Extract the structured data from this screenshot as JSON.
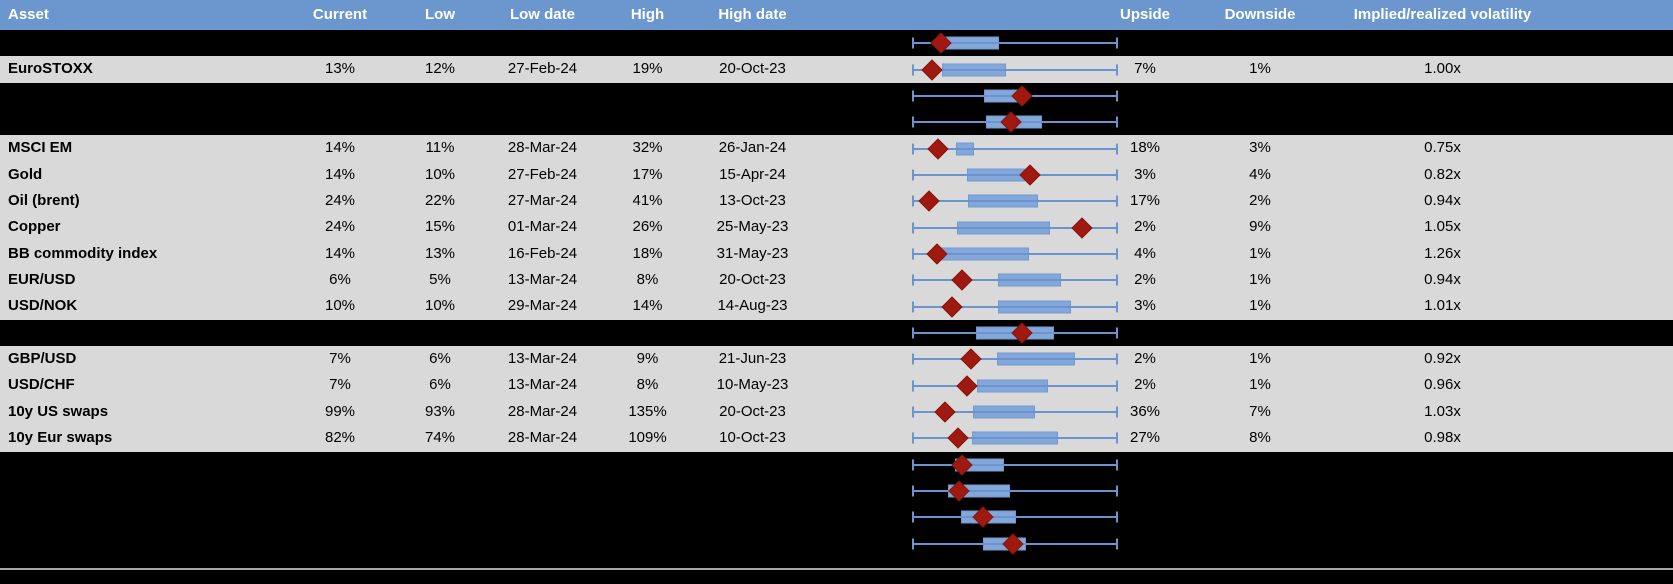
{
  "columns": {
    "asset": "Asset",
    "current": "Current",
    "low": "Low",
    "low_date": "Low date",
    "high": "High",
    "high_date": "High date",
    "upside": "Upside",
    "downside": "Downside",
    "vol": "Implied/realized volatility"
  },
  "colors": {
    "header_bg": "#6b96ce",
    "header_text": "#ffffff",
    "row_bg": "#d9d9d9",
    "hidden_row_bg": "#000000",
    "box_fill": "#84a7d9",
    "box_border": "#7299cf",
    "whisker": "#6a93cf",
    "diamond": "#9e1a10",
    "separator_line": "#a6a6a6"
  },
  "rows": [
    {
      "type": "hidden",
      "boxplot": {
        "box_left_pct": 14.6,
        "box_right_pct": 41.2,
        "diamond_pct": 13.7
      }
    },
    {
      "type": "data",
      "asset": "EuroSTOXX",
      "current": "13%",
      "low": "12%",
      "low_date": "27-Feb-24",
      "high": "19%",
      "high_date": "20-Oct-23",
      "upside": "7%",
      "downside": "1%",
      "vol": "1.00x",
      "boxplot": {
        "box_left_pct": 14.1,
        "box_right_pct": 44.6,
        "diamond_pct": 9.3
      }
    },
    {
      "type": "hidden",
      "boxplot": {
        "box_left_pct": 34.7,
        "box_right_pct": 53.9,
        "diamond_pct": 53.4
      }
    },
    {
      "type": "hidden",
      "boxplot": {
        "box_left_pct": 35.8,
        "box_right_pct": 62.3,
        "diamond_pct": 48.0
      }
    },
    {
      "type": "data",
      "asset": "MSCI EM",
      "current": "14%",
      "low": "11%",
      "low_date": "28-Mar-24",
      "high": "32%",
      "high_date": "26-Jan-24",
      "upside": "18%",
      "downside": "3%",
      "vol": "0.75x",
      "boxplot": {
        "box_left_pct": 20.9,
        "box_right_pct": 28.9,
        "diamond_pct": 12.3
      }
    },
    {
      "type": "data",
      "asset": "Gold",
      "current": "14%",
      "low": "10%",
      "low_date": "27-Feb-24",
      "high": "17%",
      "high_date": "15-Apr-24",
      "upside": "3%",
      "downside": "4%",
      "vol": "0.82x",
      "boxplot": {
        "box_left_pct": 26.3,
        "box_right_pct": 53.9,
        "diamond_pct": 57.4
      }
    },
    {
      "type": "data",
      "asset": "Oil (brent)",
      "current": "24%",
      "low": "22%",
      "low_date": "27-Mar-24",
      "high": "41%",
      "high_date": "13-Oct-23",
      "upside": "17%",
      "downside": "2%",
      "vol": "0.94x",
      "boxplot": {
        "box_left_pct": 26.8,
        "box_right_pct": 60.3,
        "diamond_pct": 8.0
      }
    },
    {
      "type": "data",
      "asset": "Copper",
      "current": "24%",
      "low": "15%",
      "low_date": "01-Mar-24",
      "high": "26%",
      "high_date": "25-May-23",
      "upside": "2%",
      "downside": "9%",
      "vol": "1.05x",
      "boxplot": {
        "box_left_pct": 21.7,
        "box_right_pct": 66.0,
        "diamond_pct": 82.7
      }
    },
    {
      "type": "data",
      "asset": "BB commodity index",
      "current": "14%",
      "low": "13%",
      "low_date": "16-Feb-24",
      "high": "18%",
      "high_date": "31-May-23",
      "upside": "4%",
      "downside": "1%",
      "vol": "1.26x",
      "boxplot": {
        "box_left_pct": 12.4,
        "box_right_pct": 55.9,
        "diamond_pct": 11.6
      }
    },
    {
      "type": "data",
      "asset": "EUR/USD",
      "current": "6%",
      "low": "5%",
      "low_date": "13-Mar-24",
      "high": "8%",
      "high_date": "20-Oct-23",
      "upside": "2%",
      "downside": "1%",
      "vol": "0.94x",
      "boxplot": {
        "box_left_pct": 41.8,
        "box_right_pct": 71.7,
        "diamond_pct": 23.9
      }
    },
    {
      "type": "data",
      "asset": "USD/NOK",
      "current": "10%",
      "low": "10%",
      "low_date": "29-Mar-24",
      "high": "14%",
      "high_date": "14-Aug-23",
      "upside": "3%",
      "downside": "1%",
      "vol": "1.01x",
      "boxplot": {
        "box_left_pct": 41.5,
        "box_right_pct": 76.6,
        "diamond_pct": 19.0
      }
    },
    {
      "type": "hidden",
      "boxplot": {
        "box_left_pct": 30.9,
        "box_right_pct": 68.0,
        "diamond_pct": 53.3
      }
    },
    {
      "type": "data",
      "asset": "GBP/USD",
      "current": "7%",
      "low": "6%",
      "low_date": "13-Mar-24",
      "high": "9%",
      "high_date": "21-Jun-23",
      "upside": "2%",
      "downside": "1%",
      "vol": "0.92x",
      "boxplot": {
        "box_left_pct": 41.0,
        "box_right_pct": 78.6,
        "diamond_pct": 28.4
      }
    },
    {
      "type": "data",
      "asset": "USD/CHF",
      "current": "7%",
      "low": "6%",
      "low_date": "13-Mar-24",
      "high": "8%",
      "high_date": "10-May-23",
      "upside": "2%",
      "downside": "1%",
      "vol": "0.96x",
      "boxplot": {
        "box_left_pct": 31.2,
        "box_right_pct": 65.0,
        "diamond_pct": 26.3
      }
    },
    {
      "type": "data",
      "asset": "10y US swaps",
      "current": "99%",
      "low": "93%",
      "low_date": "28-Mar-24",
      "high": "135%",
      "high_date": "20-Oct-23",
      "upside": "36%",
      "downside": "7%",
      "vol": "1.03x",
      "boxplot": {
        "box_left_pct": 29.3,
        "box_right_pct": 58.7,
        "diamond_pct": 15.7
      }
    },
    {
      "type": "data",
      "asset": "10y Eur swaps",
      "current": "82%",
      "low": "74%",
      "low_date": "28-Mar-24",
      "high": "109%",
      "high_date": "10-Oct-23",
      "upside": "27%",
      "downside": "8%",
      "vol": "0.98x",
      "boxplot": {
        "box_left_pct": 29.1,
        "box_right_pct": 70.1,
        "diamond_pct": 22.2
      }
    },
    {
      "type": "hidden",
      "boxplot": {
        "box_left_pct": 20.6,
        "box_right_pct": 43.6,
        "diamond_pct": 23.9
      }
    },
    {
      "type": "hidden",
      "boxplot": {
        "box_left_pct": 17.0,
        "box_right_pct": 46.4,
        "diamond_pct": 22.7
      }
    },
    {
      "type": "hidden",
      "boxplot": {
        "box_left_pct": 23.5,
        "box_right_pct": 49.7,
        "diamond_pct": 34.2
      }
    },
    {
      "type": "hidden",
      "boxplot": {
        "box_left_pct": 34.5,
        "box_right_pct": 54.4,
        "diamond_pct": 49.2
      }
    }
  ]
}
